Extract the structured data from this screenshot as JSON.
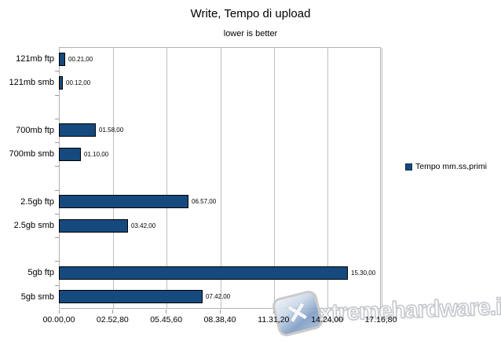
{
  "header": {
    "title": "Write, Tempo di upload",
    "subtitle": "lower is better"
  },
  "legend": {
    "label": "Tempo mm.ss,primi"
  },
  "watermark": {
    "text": "xtremehardware.it",
    "logo_icon": "x-logo",
    "logo_glyph": "✕"
  },
  "chart_data": {
    "type": "bar",
    "orientation": "horizontal",
    "title": "Write, Tempo di upload",
    "subtitle": "lower is better",
    "legend_entries": [
      "Tempo mm.ss,primi"
    ],
    "legend_position": "right",
    "value_format": "mm.ss,primi",
    "categories": [
      "121mb ftp",
      "121mb smb",
      "700mb ftp",
      "700mb smb",
      "2.5gb ftp",
      "2.5gb smb",
      "5gb ftp",
      "5gb smb"
    ],
    "value_labels": [
      "00.21,00",
      "00.12,00",
      "01.58,00",
      "01.10,00",
      "06.57,00",
      "03.42,00",
      "15.30,00",
      "07.42,00"
    ],
    "values_seconds": [
      21,
      12,
      118,
      70,
      417,
      222,
      930,
      462
    ],
    "x_tick_labels": [
      "00.00,00",
      "02.52,80",
      "05.45,60",
      "08.38,40",
      "11.31,20",
      "14.24,00",
      "17.16,80"
    ],
    "x_tick_seconds": [
      0,
      172.8,
      345.6,
      518.4,
      691.2,
      864,
      1036.8
    ],
    "xlim_seconds": [
      0,
      1036.8
    ],
    "grid": "vertical-only",
    "bar_color": "#164a7e",
    "bar_border_color": "#000000",
    "grid_color": "#bdbdbd",
    "layout": {
      "total_slots": 11,
      "slot_indices": [
        0,
        1,
        3,
        4,
        6,
        7,
        9,
        10
      ]
    }
  }
}
